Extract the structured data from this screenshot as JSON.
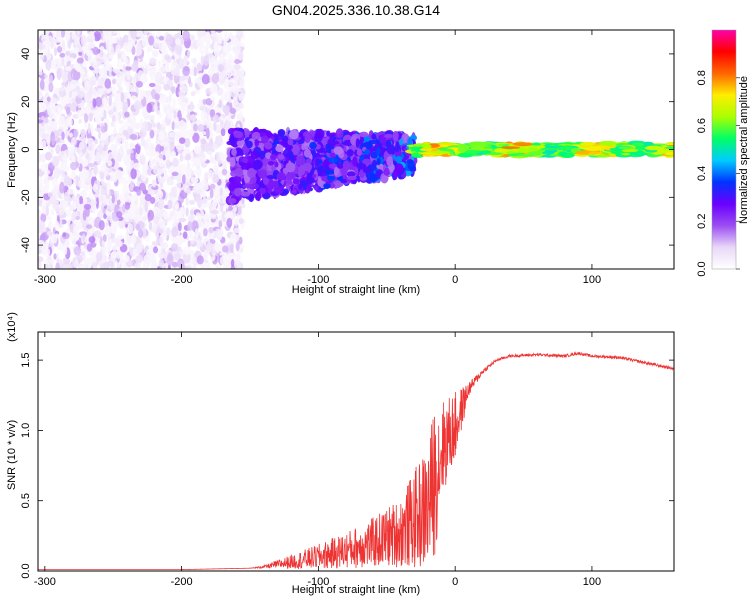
{
  "title": "GN04.2025.336.10.38.G14",
  "chart_data": [
    {
      "type": "heatmap",
      "xlabel": "Height of straight line (km)",
      "ylabel": "Frequency (Hz)",
      "xlim": [
        -305,
        160
      ],
      "ylim": [
        -50,
        50
      ],
      "xticks": [
        -300,
        -200,
        -100,
        0,
        100
      ],
      "yticks": [
        -40,
        -20,
        0,
        20,
        40
      ],
      "colorbar": {
        "label": "Normalized spectral amplitude",
        "range": [
          0,
          1
        ],
        "ticks": [
          "0.0",
          "0.2",
          "0.4",
          "0.6",
          "0.8"
        ],
        "colors": [
          "#ffffff",
          "#e8d8f8",
          "#9b4df2",
          "#6a00ff",
          "#0033ff",
          "#00ccff",
          "#00ff66",
          "#aaff00",
          "#ffee00",
          "#ff6600",
          "#ff0000",
          "#ff00aa"
        ]
      },
      "regions": [
        {
          "x_range": [
            -305,
            -155
          ],
          "freq_range": [
            -50,
            50
          ],
          "amplitude_range": [
            0.02,
            0.15
          ],
          "pattern": "scattered"
        },
        {
          "x_range": [
            -165,
            -30
          ],
          "freq_range": [
            -22,
            8
          ],
          "amplitude_range": [
            0.15,
            0.45
          ],
          "pattern": "band"
        },
        {
          "x_range": [
            -30,
            160
          ],
          "freq_range": [
            -3,
            3
          ],
          "amplitude_range": [
            0.35,
            0.95
          ],
          "pattern": "narrow-line"
        }
      ]
    },
    {
      "type": "line",
      "xlabel": "Height of straight line (km)",
      "ylabel": "SNR (10 * v/v)",
      "y_multiplier": "(x10⁴)",
      "xlim": [
        -305,
        160
      ],
      "ylim": [
        0,
        1.7
      ],
      "xticks": [
        -300,
        -200,
        -100,
        0,
        100
      ],
      "yticks": [
        0.0,
        0.5,
        1.0,
        1.5
      ],
      "series": [
        {
          "color": "#ee3333",
          "x": [
            -305,
            -200,
            -150,
            -140,
            -120,
            -100,
            -80,
            -60,
            -40,
            -30,
            -20,
            -15,
            -10,
            0,
            10,
            20,
            30,
            40,
            60,
            80,
            90,
            100,
            120,
            140,
            160
          ],
          "y": [
            0.01,
            0.01,
            0.02,
            0.03,
            0.07,
            0.11,
            0.16,
            0.22,
            0.3,
            0.4,
            0.5,
            0.7,
            0.9,
            1.05,
            1.3,
            1.42,
            1.5,
            1.53,
            1.54,
            1.53,
            1.55,
            1.53,
            1.52,
            1.48,
            1.44
          ],
          "noise_amplitude": [
            0.0,
            0.0,
            0.0,
            0.01,
            0.05,
            0.09,
            0.13,
            0.18,
            0.25,
            0.35,
            0.45,
            0.55,
            0.35,
            0.25,
            0.05,
            0.02,
            0.01,
            0.01,
            0.01,
            0.01,
            0.01,
            0.01,
            0.01,
            0.01,
            0.01
          ]
        }
      ]
    }
  ]
}
